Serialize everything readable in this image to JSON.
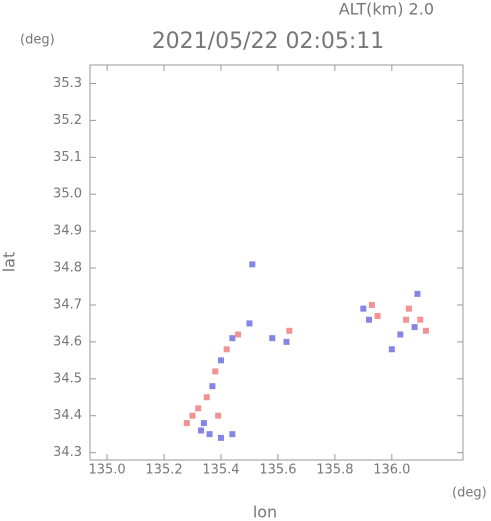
{
  "chart_data": {
    "type": "scatter",
    "title": "2021/05/22 02:05:11",
    "subtitle": "ALT(km) 2.0",
    "y_unit": "(deg)",
    "x_unit": "(deg)",
    "xlabel": "lon",
    "ylabel": "lat",
    "xlim": [
      134.94,
      136.25
    ],
    "ylim": [
      34.28,
      35.35
    ],
    "xticks": [
      {
        "value": 135.0,
        "label": "135.0"
      },
      135.2,
      135.4,
      135.6,
      135.8,
      {
        "value": 136.0,
        "label": "136.0"
      }
    ],
    "yticks": [
      34.3,
      34.4,
      34.5,
      34.6,
      34.7,
      34.8,
      34.9,
      {
        "value": 35.0,
        "label": "35.0"
      },
      35.1,
      35.2,
      35.3
    ],
    "x": [
      135.28,
      135.3,
      135.33,
      135.36,
      135.4,
      135.44,
      135.32,
      135.35,
      135.37,
      135.38,
      135.4,
      135.42,
      135.44,
      135.46,
      135.39,
      135.34,
      135.51,
      135.5,
      135.58,
      135.63,
      135.64,
      135.9,
      135.93,
      135.95,
      135.92,
      136.05,
      136.08,
      136.1,
      136.12,
      136.03,
      136.0,
      136.06,
      136.09
    ],
    "y": [
      34.38,
      34.4,
      34.36,
      34.35,
      34.34,
      34.35,
      34.42,
      34.45,
      34.48,
      34.52,
      34.55,
      34.58,
      34.61,
      34.62,
      34.4,
      34.38,
      34.81,
      34.65,
      34.61,
      34.6,
      34.63,
      34.69,
      34.7,
      34.67,
      34.66,
      34.66,
      34.64,
      34.66,
      34.63,
      34.62,
      34.58,
      34.69,
      34.73
    ],
    "colors": [
      "#f08080",
      "#f08080",
      "#7070e0",
      "#7070e0",
      "#7070e0",
      "#7070e0",
      "#f08080",
      "#f08080",
      "#7070e0",
      "#f08080",
      "#7070e0",
      "#f08080",
      "#7070e0",
      "#f08080",
      "#f08080",
      "#7070e0",
      "#7070e0",
      "#7070e0",
      "#7070e0",
      "#7070e0",
      "#f08080",
      "#7070e0",
      "#f08080",
      "#f08080",
      "#7070e0",
      "#f08080",
      "#7070e0",
      "#f08080",
      "#f08080",
      "#7070e0",
      "#7070e0",
      "#f08080",
      "#7070e0"
    ]
  }
}
